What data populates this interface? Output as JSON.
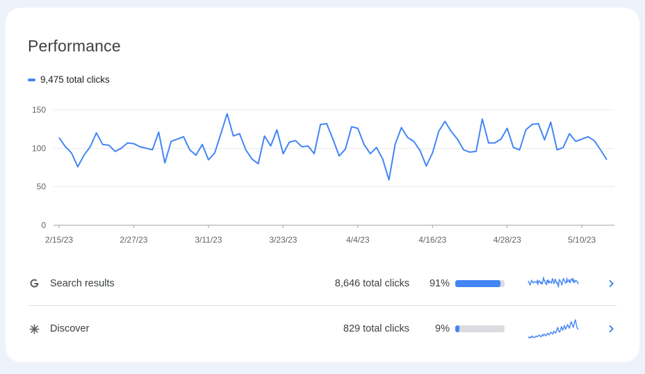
{
  "card": {
    "title": "Performance",
    "legend_label": "9,475 total clicks",
    "accent_color": "#4285f4"
  },
  "chart_data": {
    "type": "line",
    "title": "",
    "xlabel": "",
    "ylabel": "",
    "ylim": [
      0,
      150
    ],
    "yticks": [
      0,
      50,
      100,
      150
    ],
    "yticklabels": [
      "0",
      "50",
      "100",
      "150"
    ],
    "xticklabels": [
      "2/15/23",
      "2/27/23",
      "3/11/23",
      "3/23/23",
      "4/4/23",
      "4/16/23",
      "4/28/23",
      "5/10/23"
    ],
    "grid": true,
    "series": [
      {
        "values": [
          114,
          102,
          94,
          76,
          91,
          102,
          120,
          105,
          104,
          96,
          100,
          107,
          106,
          102,
          100,
          98,
          121,
          81,
          109,
          112,
          115,
          98,
          91,
          105,
          85,
          94,
          119,
          145,
          116,
          119,
          98,
          86,
          80,
          116,
          103,
          124,
          93,
          108,
          110,
          102,
          103,
          93,
          131,
          132,
          112,
          90,
          99,
          128,
          126,
          105,
          93,
          101,
          86,
          59,
          105,
          127,
          114,
          109,
          97,
          77,
          94,
          122,
          135,
          122,
          112,
          98,
          95,
          96,
          138,
          107,
          107,
          112,
          126,
          101,
          98,
          124,
          131,
          132,
          111,
          134,
          98,
          101,
          119,
          109,
          112,
          115,
          110,
          98,
          85
        ]
      }
    ]
  },
  "rows": [
    {
      "icon": "google-g-icon",
      "label": "Search results",
      "clicks": "8,646 total clicks",
      "percent": "91%",
      "fill_fraction": 0.91,
      "spark": [
        114,
        102,
        94,
        76,
        91,
        102,
        120,
        105,
        104,
        96,
        100,
        107,
        106,
        102,
        100,
        98,
        121,
        81,
        109,
        112,
        115,
        98,
        91,
        105,
        85,
        94,
        119,
        145,
        116,
        119,
        98,
        86,
        80,
        116,
        103,
        124,
        93,
        108,
        110,
        102,
        103,
        93,
        131,
        132,
        112,
        90,
        99,
        128,
        126,
        105,
        93,
        101,
        86,
        59,
        105,
        127,
        114,
        109,
        97,
        77,
        94,
        122,
        135,
        122,
        112,
        98,
        95,
        96,
        138,
        107,
        107,
        112,
        126,
        101,
        98,
        124,
        131,
        132,
        111,
        134,
        98,
        101,
        119,
        109,
        112,
        115,
        110,
        98,
        85
      ]
    },
    {
      "icon": "discover-asterisk-icon",
      "label": "Discover",
      "clicks": "829 total clicks",
      "percent": "9%",
      "fill_fraction": 0.09,
      "spark": [
        2,
        1,
        2,
        1,
        3,
        2,
        1,
        2,
        3,
        2,
        3,
        4,
        3,
        2,
        4,
        3,
        5,
        4,
        3,
        5,
        6,
        4,
        5,
        7,
        6,
        5,
        8,
        7,
        6,
        9,
        12,
        8,
        7,
        10,
        13,
        9,
        11,
        14,
        10,
        12,
        15,
        13,
        11,
        16,
        18,
        14,
        12,
        17,
        20,
        15,
        11,
        10
      ]
    }
  ]
}
